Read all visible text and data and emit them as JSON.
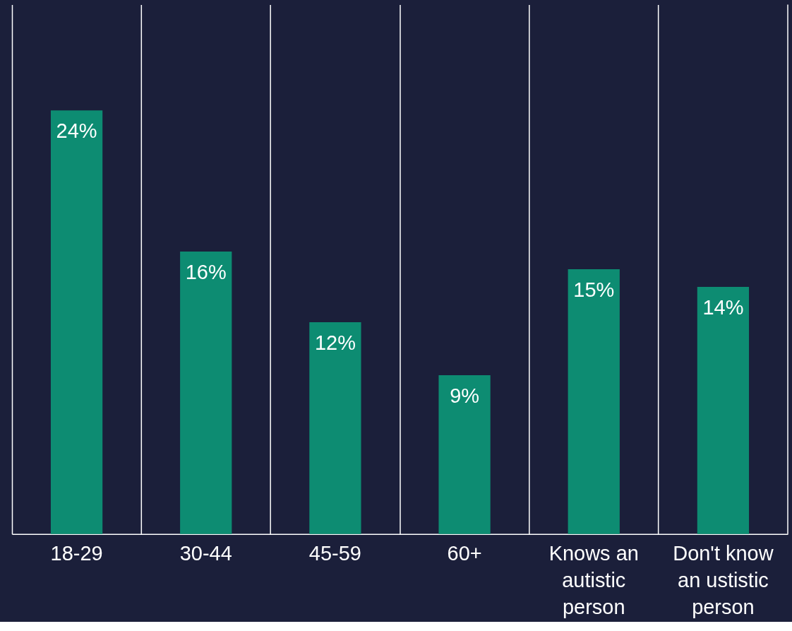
{
  "chart_data": {
    "type": "bar",
    "categories": [
      "18-29",
      "30-44",
      "45-59",
      "60+",
      "Knows an autistic person",
      "Don't know an ustistic person"
    ],
    "values": [
      24,
      16,
      12,
      9,
      15,
      14
    ],
    "value_labels": [
      "24%",
      "16%",
      "12%",
      "9%",
      "15%",
      "14%"
    ],
    "color": "#0d8c72",
    "grid": "x"
  }
}
